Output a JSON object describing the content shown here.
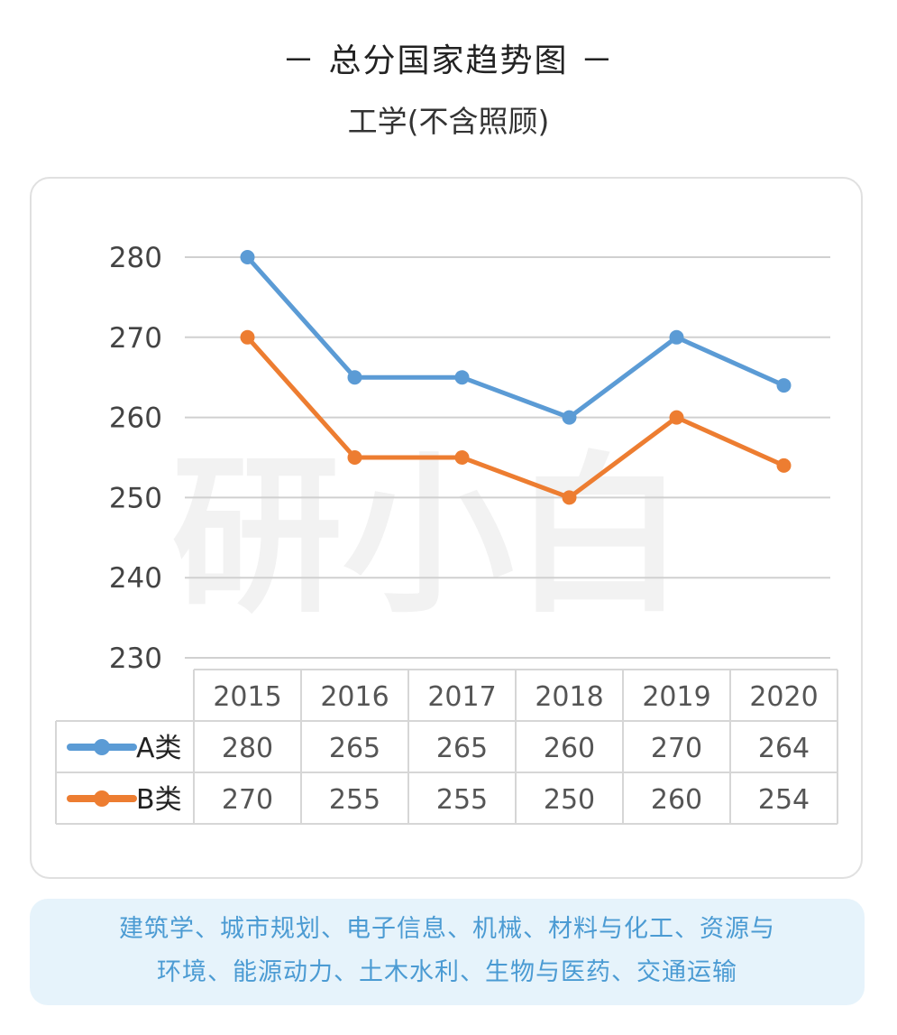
{
  "header": {
    "title": "－ 总分国家趋势图 －",
    "subtitle": "工学(不含照顾)"
  },
  "watermark": "研小白",
  "chart_data": {
    "type": "line",
    "title": "",
    "xlabel": "",
    "ylabel": "",
    "categories": [
      "2015",
      "2016",
      "2017",
      "2018",
      "2019",
      "2020"
    ],
    "ylim": [
      230,
      280
    ],
    "yticks": [
      "230",
      "240",
      "250",
      "260",
      "270",
      "280"
    ],
    "grid": true,
    "legend": "data-table-left",
    "series": [
      {
        "name": "A类",
        "color": "#5b9bd5",
        "values": [
          280,
          265,
          265,
          260,
          270,
          264
        ]
      },
      {
        "name": "B类",
        "color": "#ed7d31",
        "values": [
          270,
          255,
          255,
          250,
          260,
          254
        ]
      }
    ]
  },
  "footer": {
    "line1": "建筑学、城市规划、电子信息、机械、材料与化工、资源与",
    "line2": "环境、能源动力、土木水利、生物与医药、交通运输"
  }
}
